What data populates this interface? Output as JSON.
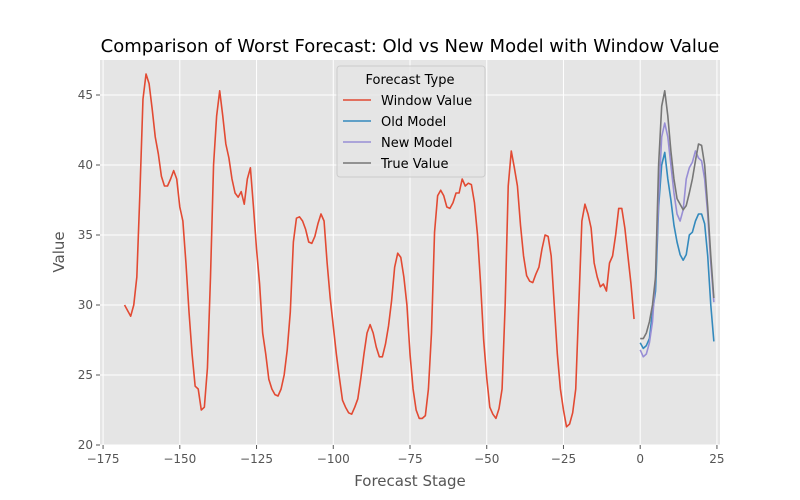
{
  "chart_data": {
    "type": "line",
    "title": "Comparison of Worst Forecast: Old vs New Model with Window Value",
    "xlabel": "Forecast Stage",
    "ylabel": "Value",
    "xlim": [
      -176,
      26
    ],
    "ylim": [
      20,
      47.5
    ],
    "xticks": [
      -175,
      -150,
      -125,
      -100,
      -75,
      -50,
      -25,
      0,
      25
    ],
    "xtick_labels": [
      "−175",
      "−150",
      "−125",
      "−100",
      "−75",
      "−50",
      "−25",
      "0",
      "25"
    ],
    "yticks": [
      20,
      25,
      30,
      35,
      40,
      45
    ],
    "ytick_labels": [
      "20",
      "25",
      "30",
      "35",
      "40",
      "45"
    ],
    "grid": true,
    "legend": {
      "title": "Forecast Type",
      "placement": "top-center"
    },
    "series": [
      {
        "name": "Window Value",
        "color": "#E24A33",
        "x_start": -168,
        "values": [
          30.0,
          29.6,
          29.2,
          30.0,
          32.0,
          38.0,
          44.7,
          46.5,
          45.8,
          44.0,
          42.0,
          40.8,
          39.2,
          38.5,
          38.5,
          39.0,
          39.6,
          39.0,
          37.0,
          36.0,
          33.0,
          29.5,
          26.5,
          24.2,
          24.0,
          22.5,
          22.7,
          25.5,
          32.0,
          40.0,
          43.5,
          45.3,
          43.5,
          41.5,
          40.5,
          39.0,
          38.0,
          37.7,
          38.1,
          37.2,
          39.0,
          39.8,
          37.0,
          34.0,
          31.5,
          28.0,
          26.5,
          24.7,
          24.0,
          23.6,
          23.5,
          24.0,
          25.0,
          26.8,
          29.5,
          34.5,
          36.2,
          36.3,
          36.0,
          35.4,
          34.5,
          34.4,
          34.9,
          35.8,
          36.5,
          36.0,
          33.0,
          30.5,
          28.5,
          26.5,
          24.8,
          23.2,
          22.7,
          22.3,
          22.2,
          22.7,
          23.3,
          24.8,
          26.5,
          28.0,
          28.6,
          28.0,
          27.0,
          26.3,
          26.3,
          27.2,
          28.5,
          30.3,
          32.7,
          33.7,
          33.4,
          32.0,
          30.0,
          26.5,
          24.0,
          22.5,
          21.9,
          21.9,
          22.1,
          24.0,
          28.0,
          35.2,
          37.8,
          38.2,
          37.8,
          37.0,
          36.9,
          37.3,
          38.0,
          38.0,
          39.0,
          38.5,
          38.7,
          38.6,
          37.3,
          35.0,
          31.5,
          27.5,
          24.8,
          22.7,
          22.2,
          21.9,
          22.6,
          24.0,
          30.0,
          38.5,
          41.0,
          39.8,
          38.5,
          35.7,
          33.5,
          32.1,
          31.7,
          31.6,
          32.2,
          32.7,
          34.0,
          35.0,
          34.9,
          33.5,
          30.0,
          26.5,
          24.0,
          22.5,
          21.3,
          21.5,
          22.3,
          24.0,
          30.0,
          36.0,
          37.2,
          36.5,
          35.5,
          33.0,
          32.0,
          31.3,
          31.5,
          31.0,
          33.0,
          33.5,
          35.0,
          36.9,
          36.9,
          35.5,
          33.5,
          31.5,
          29.0
        ]
      },
      {
        "name": "Old Model",
        "color": "#348ABD",
        "x": [
          0,
          1,
          2,
          3,
          4,
          5,
          6,
          7,
          8,
          9,
          10,
          11,
          12,
          13,
          14,
          15,
          16,
          17,
          18,
          19,
          20,
          21,
          22,
          23,
          24
        ],
        "values": [
          27.3,
          26.9,
          27.1,
          27.6,
          29.5,
          31.0,
          37.0,
          40.0,
          40.9,
          39.0,
          37.5,
          35.7,
          34.5,
          33.6,
          33.2,
          33.6,
          35.0,
          35.2,
          36.0,
          36.5,
          36.5,
          35.8,
          33.5,
          30.0,
          27.4
        ]
      },
      {
        "name": "New Model",
        "color": "#988ED5",
        "x": [
          0,
          1,
          2,
          3,
          4,
          5,
          6,
          7,
          8,
          9,
          10,
          11,
          12,
          13,
          14,
          15,
          16,
          17,
          18,
          19,
          20,
          21,
          22,
          23,
          24
        ],
        "values": [
          26.8,
          26.3,
          26.5,
          27.3,
          28.8,
          32.0,
          37.5,
          42.0,
          43.0,
          42.0,
          40.0,
          38.0,
          36.5,
          36.0,
          36.8,
          39.0,
          39.8,
          40.2,
          41.0,
          40.5,
          40.3,
          39.0,
          36.5,
          33.0,
          30.2
        ]
      },
      {
        "name": "True Value",
        "color": "#777777",
        "x": [
          0,
          1,
          2,
          3,
          4,
          5,
          6,
          7,
          8,
          9,
          10,
          11,
          12,
          13,
          14,
          15,
          16,
          17,
          18,
          19,
          20,
          21,
          22,
          23,
          24
        ],
        "values": [
          27.6,
          27.6,
          28.0,
          28.8,
          30.0,
          32.0,
          40.0,
          44.2,
          45.3,
          43.5,
          41.0,
          39.0,
          37.6,
          37.2,
          36.8,
          37.1,
          38.0,
          39.0,
          40.3,
          41.5,
          41.4,
          40.0,
          37.0,
          33.5,
          30.5
        ]
      }
    ]
  }
}
